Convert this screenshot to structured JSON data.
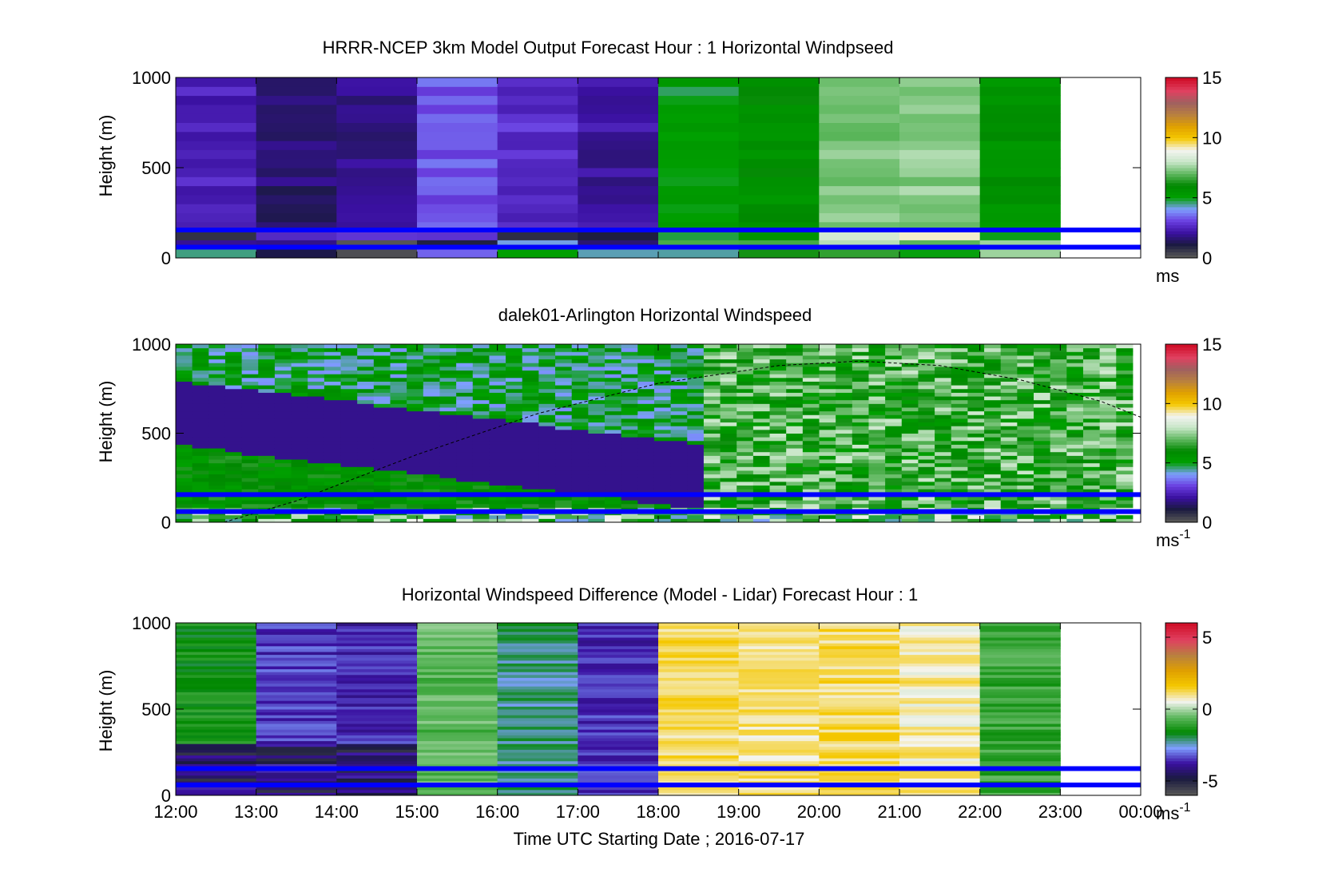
{
  "figure": {
    "xlabel": "Time UTC  Starting Date ; 2016-07-17"
  },
  "chart_data": [
    {
      "type": "heatmap",
      "title": "HRRR-NCEP 3km Model Output   Forecast Hour : 1 Horizontal Windpseed",
      "ylabel": "Height (m)",
      "ylim": [
        0,
        1000
      ],
      "yticks": [
        "0",
        "500",
        "1000"
      ],
      "xlim": [
        "12:00",
        "00:00"
      ],
      "colorbar": {
        "ticks": [
          "0",
          "5",
          "10",
          "15"
        ],
        "range": [
          0,
          15
        ],
        "unit": "ms",
        "unit_sup": ""
      },
      "reference_lines_m": [
        60,
        155
      ],
      "column_values": [
        2.4,
        1.5,
        1.7,
        3.2,
        2.7,
        2.0,
        5.0,
        5.7,
        7.3,
        7.4,
        5.6
      ],
      "data_extent_hours": 11
    },
    {
      "type": "heatmap",
      "title": "dalek01-Arlington  Horizontal Windspeed",
      "ylabel": "Height (m)",
      "ylim": [
        0,
        1000
      ],
      "yticks": [
        "0",
        "500",
        "1000"
      ],
      "xlim": [
        "12:00",
        "00:00"
      ],
      "colorbar": {
        "ticks": [
          "0",
          "5",
          "10",
          "15"
        ],
        "range": [
          0,
          15
        ],
        "unit": "ms",
        "unit_sup": "-1"
      },
      "reference_lines_m": [
        60,
        155
      ],
      "boundary_layer_curve": [
        [
          12.6,
          0
        ],
        [
          13.5,
          120
        ],
        [
          15.0,
          380
        ],
        [
          16.5,
          610
        ],
        [
          18.0,
          780
        ],
        [
          19.5,
          880
        ],
        [
          20.5,
          905
        ],
        [
          21.5,
          880
        ],
        [
          22.5,
          800
        ],
        [
          23.5,
          680
        ],
        [
          24.0,
          590
        ]
      ],
      "data_extent_hours": 11.9
    },
    {
      "type": "heatmap",
      "title": "Horizontal Windspeed Difference (Model - Lidar) Forecast Hour : 1",
      "ylabel": "Height (m)",
      "ylim": [
        0,
        1000
      ],
      "yticks": [
        "0",
        "500",
        "1000"
      ],
      "xlim": [
        "12:00",
        "00:00"
      ],
      "xticks": [
        "12:00",
        "13:00",
        "14:00",
        "15:00",
        "16:00",
        "17:00",
        "18:00",
        "19:00",
        "20:00",
        "21:00",
        "22:00",
        "23:00",
        "00:00"
      ],
      "colorbar": {
        "ticks": [
          "-5",
          "0",
          "5"
        ],
        "range": [
          -6,
          6
        ],
        "unit": "ms",
        "unit_sup": "-1"
      },
      "reference_lines_m": [
        60,
        155
      ],
      "column_values": [
        -1.5,
        -3.5,
        -3.7,
        -0.6,
        -2.2,
        -3.6,
        1.2,
        1.0,
        1.2,
        0.9,
        -1.0
      ],
      "data_extent_hours": 11
    }
  ],
  "colors": {
    "reference_line": "#0000ff",
    "windspeed_colormap": [
      "#555555",
      "#1a1a40",
      "#3a10a0",
      "#6a3fe0",
      "#7f9fff",
      "#00a000",
      "#008800",
      "#60b860",
      "#c8e6c8",
      "#f4f4f0",
      "#f5c800",
      "#e0a000",
      "#b88040",
      "#a06060",
      "#e04060",
      "#d0102a"
    ]
  }
}
